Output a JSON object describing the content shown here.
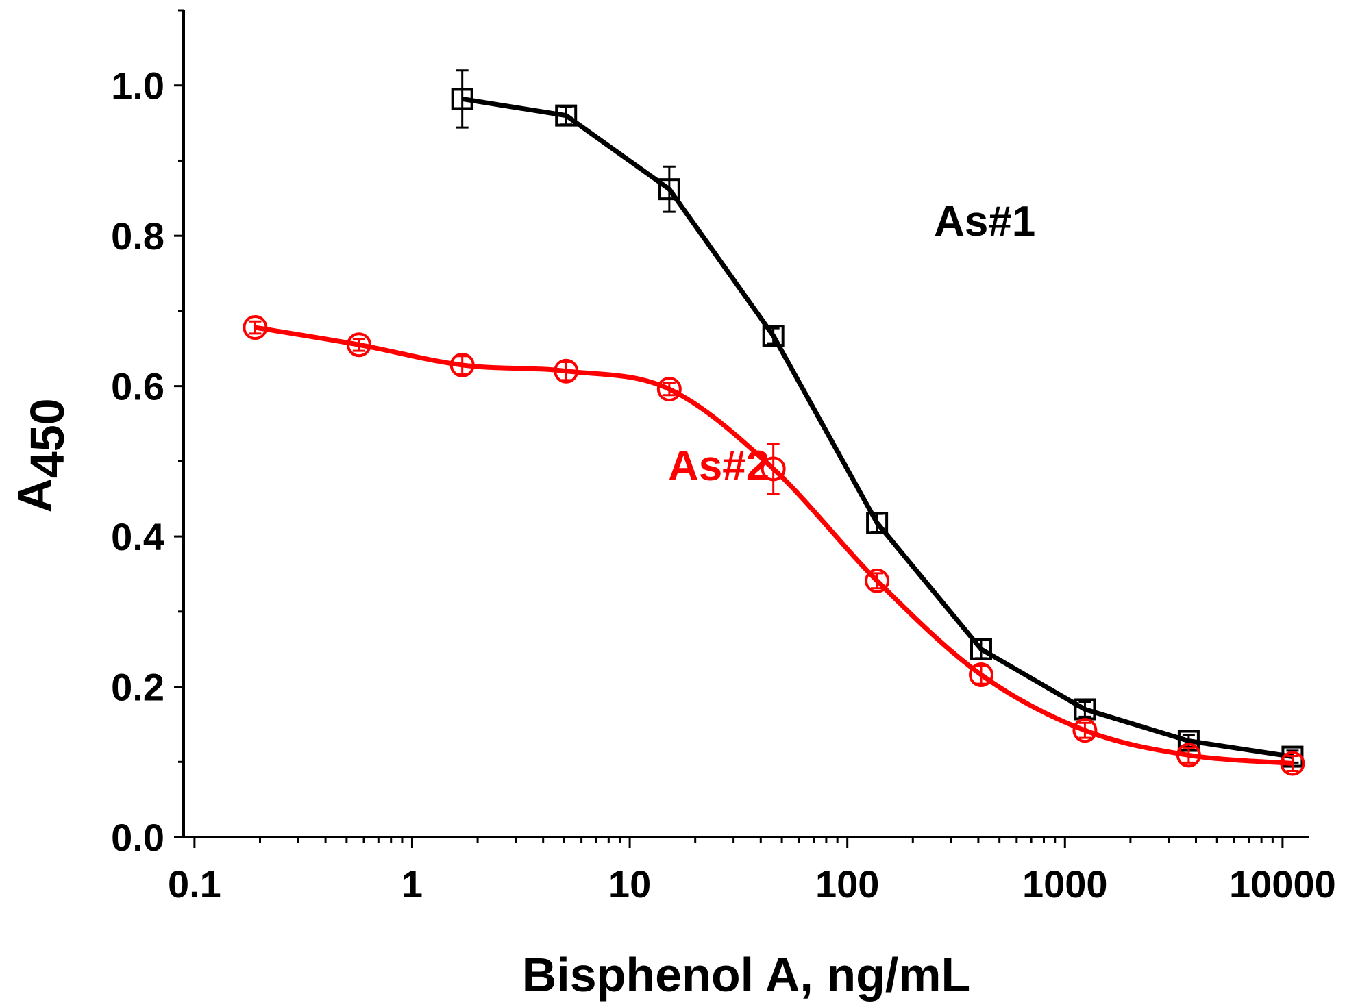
{
  "chart_data": {
    "type": "line",
    "xscale": "log",
    "xlabel": "Bisphenol A, ng/mL",
    "ylabel": "A",
    "ylabel_sub": "450",
    "xlim": [
      0.1,
      10000
    ],
    "ylim": [
      0.0,
      1.1
    ],
    "xticks": [
      0.1,
      1,
      10,
      100,
      1000,
      10000
    ],
    "xtick_labels": [
      "0.1",
      "1",
      "10",
      "100",
      "1000",
      "10000"
    ],
    "yticks": [
      0.0,
      0.2,
      0.4,
      0.6,
      0.8,
      1.0
    ],
    "ytick_labels": [
      "0.0",
      "0.2",
      "0.4",
      "0.6",
      "0.8",
      "1.0"
    ],
    "grid": false,
    "series": [
      {
        "name": "As#1",
        "color": "#000000",
        "marker": "square",
        "label_x": 250,
        "label_y": 0.8,
        "points": [
          {
            "x": 1.7,
            "y": 0.982,
            "err": 0.038
          },
          {
            "x": 5.1,
            "y": 0.96,
            "err": 0.012
          },
          {
            "x": 15.2,
            "y": 0.862,
            "err": 0.03
          },
          {
            "x": 45.7,
            "y": 0.667,
            "err": 0.01
          },
          {
            "x": 137,
            "y": 0.418,
            "err": 0.012
          },
          {
            "x": 412,
            "y": 0.25,
            "err": 0.012
          },
          {
            "x": 1235,
            "y": 0.17,
            "err": 0.01
          },
          {
            "x": 3704,
            "y": 0.128,
            "err": 0.008
          },
          {
            "x": 11111,
            "y": 0.107,
            "err": 0.008
          }
        ]
      },
      {
        "name": "As#2",
        "color": "#ff0000",
        "marker": "circle",
        "label_x": 15,
        "label_y": 0.475,
        "points": [
          {
            "x": 0.19,
            "y": 0.678,
            "err": 0.008
          },
          {
            "x": 0.57,
            "y": 0.655,
            "err": 0.008
          },
          {
            "x": 1.7,
            "y": 0.628,
            "err": 0.012
          },
          {
            "x": 5.1,
            "y": 0.62,
            "err": 0.012
          },
          {
            "x": 15.2,
            "y": 0.596,
            "err": 0.008
          },
          {
            "x": 45.7,
            "y": 0.49,
            "err": 0.033
          },
          {
            "x": 137,
            "y": 0.341,
            "err": 0.01
          },
          {
            "x": 412,
            "y": 0.216,
            "err": 0.012
          },
          {
            "x": 1235,
            "y": 0.142,
            "err": 0.01
          },
          {
            "x": 3704,
            "y": 0.109,
            "err": 0.01
          },
          {
            "x": 11111,
            "y": 0.098,
            "err": 0.01
          }
        ]
      }
    ]
  }
}
